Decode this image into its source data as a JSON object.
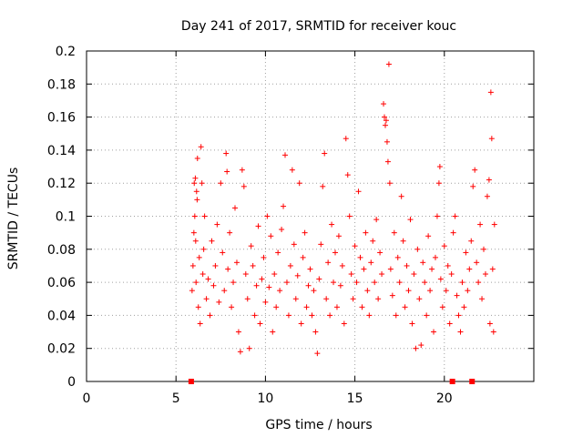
{
  "chart_data": {
    "type": "scatter",
    "title": "Day 241 of 2017, SRMTID for receiver kouc",
    "xlabel": "GPS time / hours",
    "ylabel": "SRMTID / TECUs",
    "xlim": [
      0,
      25
    ],
    "ylim": [
      0,
      0.2
    ],
    "xticks": [
      0,
      5,
      10,
      15,
      20
    ],
    "yticks": [
      0,
      0.02,
      0.04,
      0.06,
      0.08,
      0.1,
      0.12,
      0.14,
      0.16,
      0.18,
      0.2
    ],
    "xtick_labels": [
      "0",
      "5",
      "10",
      "15",
      "20"
    ],
    "ytick_labels": [
      "0",
      "0.02",
      "0.04",
      "0.06",
      "0.08",
      "0.1",
      "0.12",
      "0.14",
      "0.16",
      "0.18",
      "0.2"
    ],
    "grid": true,
    "marker": "+",
    "color": "#ff0000",
    "series": [
      {
        "name": "SRMTID",
        "points": [
          [
            5.9,
            0.055
          ],
          [
            5.95,
            0.07
          ],
          [
            6.0,
            0.09
          ],
          [
            6.02,
            0.12
          ],
          [
            6.05,
            0.1
          ],
          [
            6.08,
            0.123
          ],
          [
            6.1,
            0.085
          ],
          [
            6.12,
            0.06
          ],
          [
            6.15,
            0.115
          ],
          [
            6.18,
            0.11
          ],
          [
            6.2,
            0.135
          ],
          [
            6.25,
            0.045
          ],
          [
            6.3,
            0.075
          ],
          [
            6.35,
            0.035
          ],
          [
            6.4,
            0.142
          ],
          [
            6.45,
            0.12
          ],
          [
            6.5,
            0.065
          ],
          [
            6.55,
            0.08
          ],
          [
            6.6,
            0.1
          ],
          [
            6.7,
            0.05
          ],
          [
            6.8,
            0.062
          ],
          [
            6.9,
            0.04
          ],
          [
            7.0,
            0.085
          ],
          [
            7.1,
            0.058
          ],
          [
            7.2,
            0.07
          ],
          [
            7.3,
            0.095
          ],
          [
            7.4,
            0.048
          ],
          [
            7.5,
            0.12
          ],
          [
            7.6,
            0.078
          ],
          [
            7.7,
            0.055
          ],
          [
            7.8,
            0.138
          ],
          [
            7.85,
            0.127
          ],
          [
            7.9,
            0.068
          ],
          [
            8.0,
            0.09
          ],
          [
            8.1,
            0.045
          ],
          [
            8.2,
            0.06
          ],
          [
            8.3,
            0.105
          ],
          [
            8.4,
            0.072
          ],
          [
            8.5,
            0.03
          ],
          [
            8.6,
            0.018
          ],
          [
            8.7,
            0.128
          ],
          [
            8.8,
            0.118
          ],
          [
            8.9,
            0.065
          ],
          [
            9.0,
            0.05
          ],
          [
            9.1,
            0.02
          ],
          [
            9.2,
            0.082
          ],
          [
            9.3,
            0.07
          ],
          [
            9.4,
            0.04
          ],
          [
            9.5,
            0.058
          ],
          [
            9.6,
            0.094
          ],
          [
            9.7,
            0.035
          ],
          [
            9.8,
            0.062
          ],
          [
            9.9,
            0.075
          ],
          [
            10.0,
            0.048
          ],
          [
            10.1,
            0.1
          ],
          [
            10.2,
            0.057
          ],
          [
            10.3,
            0.088
          ],
          [
            10.4,
            0.03
          ],
          [
            10.5,
            0.065
          ],
          [
            10.6,
            0.045
          ],
          [
            10.7,
            0.078
          ],
          [
            10.8,
            0.055
          ],
          [
            10.9,
            0.092
          ],
          [
            11.0,
            0.106
          ],
          [
            11.1,
            0.137
          ],
          [
            11.2,
            0.06
          ],
          [
            11.3,
            0.04
          ],
          [
            11.4,
            0.07
          ],
          [
            11.5,
            0.128
          ],
          [
            11.6,
            0.083
          ],
          [
            11.7,
            0.05
          ],
          [
            11.8,
            0.064
          ],
          [
            11.9,
            0.12
          ],
          [
            12.0,
            0.035
          ],
          [
            12.1,
            0.075
          ],
          [
            12.2,
            0.09
          ],
          [
            12.3,
            0.045
          ],
          [
            12.4,
            0.058
          ],
          [
            12.5,
            0.068
          ],
          [
            12.6,
            0.04
          ],
          [
            12.7,
            0.055
          ],
          [
            12.8,
            0.03
          ],
          [
            12.9,
            0.017
          ],
          [
            13.0,
            0.062
          ],
          [
            13.1,
            0.083
          ],
          [
            13.2,
            0.118
          ],
          [
            13.3,
            0.138
          ],
          [
            13.4,
            0.05
          ],
          [
            13.5,
            0.072
          ],
          [
            13.6,
            0.04
          ],
          [
            13.7,
            0.095
          ],
          [
            13.8,
            0.06
          ],
          [
            13.9,
            0.078
          ],
          [
            14.0,
            0.045
          ],
          [
            14.1,
            0.088
          ],
          [
            14.2,
            0.058
          ],
          [
            14.3,
            0.07
          ],
          [
            14.4,
            0.035
          ],
          [
            14.5,
            0.147
          ],
          [
            14.6,
            0.125
          ],
          [
            14.7,
            0.1
          ],
          [
            14.8,
            0.065
          ],
          [
            14.9,
            0.05
          ],
          [
            15.0,
            0.082
          ],
          [
            15.1,
            0.06
          ],
          [
            15.2,
            0.115
          ],
          [
            15.3,
            0.075
          ],
          [
            15.4,
            0.045
          ],
          [
            15.5,
            0.068
          ],
          [
            15.6,
            0.09
          ],
          [
            15.7,
            0.055
          ],
          [
            15.8,
            0.04
          ],
          [
            15.9,
            0.072
          ],
          [
            16.0,
            0.085
          ],
          [
            16.1,
            0.06
          ],
          [
            16.2,
            0.098
          ],
          [
            16.3,
            0.05
          ],
          [
            16.4,
            0.078
          ],
          [
            16.5,
            0.065
          ],
          [
            16.6,
            0.168
          ],
          [
            16.65,
            0.16
          ],
          [
            16.7,
            0.155
          ],
          [
            16.75,
            0.158
          ],
          [
            16.8,
            0.145
          ],
          [
            16.85,
            0.133
          ],
          [
            16.9,
            0.192
          ],
          [
            16.95,
            0.12
          ],
          [
            17.0,
            0.068
          ],
          [
            17.1,
            0.052
          ],
          [
            17.2,
            0.09
          ],
          [
            17.3,
            0.04
          ],
          [
            17.4,
            0.075
          ],
          [
            17.5,
            0.06
          ],
          [
            17.6,
            0.112
          ],
          [
            17.7,
            0.085
          ],
          [
            17.8,
            0.045
          ],
          [
            17.9,
            0.07
          ],
          [
            18.0,
            0.055
          ],
          [
            18.1,
            0.098
          ],
          [
            18.2,
            0.035
          ],
          [
            18.3,
            0.065
          ],
          [
            18.4,
            0.02
          ],
          [
            18.5,
            0.08
          ],
          [
            18.6,
            0.05
          ],
          [
            18.7,
            0.022
          ],
          [
            18.8,
            0.072
          ],
          [
            18.9,
            0.06
          ],
          [
            19.0,
            0.04
          ],
          [
            19.1,
            0.088
          ],
          [
            19.2,
            0.055
          ],
          [
            19.3,
            0.068
          ],
          [
            19.4,
            0.03
          ],
          [
            19.5,
            0.075
          ],
          [
            19.6,
            0.1
          ],
          [
            19.7,
            0.12
          ],
          [
            19.75,
            0.13
          ],
          [
            19.8,
            0.062
          ],
          [
            19.9,
            0.045
          ],
          [
            20.0,
            0.082
          ],
          [
            20.1,
            0.055
          ],
          [
            20.2,
            0.07
          ],
          [
            20.3,
            0.035
          ],
          [
            20.4,
            0.065
          ],
          [
            20.5,
            0.09
          ],
          [
            20.6,
            0.1
          ],
          [
            20.7,
            0.052
          ],
          [
            20.8,
            0.04
          ],
          [
            20.9,
            0.03
          ],
          [
            21.0,
            0.06
          ],
          [
            21.1,
            0.045
          ],
          [
            21.2,
            0.078
          ],
          [
            21.3,
            0.055
          ],
          [
            21.4,
            0.068
          ],
          [
            21.5,
            0.085
          ],
          [
            21.6,
            0.118
          ],
          [
            21.7,
            0.128
          ],
          [
            21.8,
            0.072
          ],
          [
            21.9,
            0.06
          ],
          [
            22.0,
            0.095
          ],
          [
            22.1,
            0.05
          ],
          [
            22.2,
            0.08
          ],
          [
            22.3,
            0.065
          ],
          [
            22.4,
            0.112
          ],
          [
            22.5,
            0.122
          ],
          [
            22.55,
            0.035
          ],
          [
            22.6,
            0.175
          ],
          [
            22.65,
            0.147
          ],
          [
            22.7,
            0.068
          ],
          [
            22.75,
            0.03
          ],
          [
            22.8,
            0.095
          ]
        ]
      }
    ],
    "data_gap_markers_x": [
      5.85,
      20.45,
      21.55
    ],
    "data_gap_markers_y": 0
  }
}
